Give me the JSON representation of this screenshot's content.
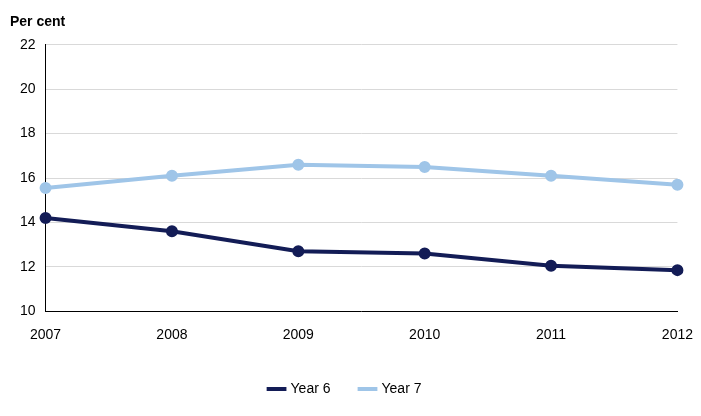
{
  "chart_data": {
    "type": "line",
    "y_label": "Per cent",
    "categories": [
      "2007",
      "2008",
      "2009",
      "2010",
      "2011",
      "2012"
    ],
    "series": [
      {
        "name": "Year 6",
        "color": "#131c56",
        "marker": "circle",
        "values": [
          14.2,
          13.6,
          12.7,
          12.6,
          12.05,
          11.85
        ]
      },
      {
        "name": "Year 7",
        "color": "#9fc5e8",
        "marker": "circle",
        "values": [
          15.55,
          16.1,
          16.6,
          16.5,
          16.1,
          15.7
        ]
      }
    ],
    "ylim": [
      10,
      22
    ],
    "yticks": [
      10,
      12,
      14,
      16,
      18,
      20,
      22
    ],
    "grid": true,
    "legend": "bottom"
  }
}
